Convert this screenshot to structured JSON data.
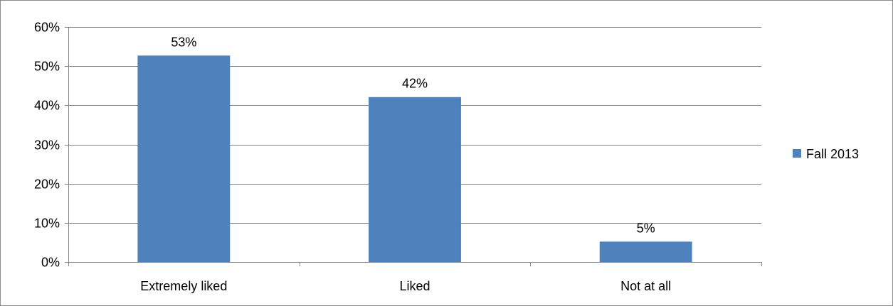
{
  "chart_data": {
    "type": "bar",
    "title": "",
    "xlabel": "",
    "ylabel": "",
    "categories": [
      "Extremely liked",
      "Liked",
      "Not at all"
    ],
    "series": [
      {
        "name": "Fall 2013",
        "values": [
          0.527,
          0.421,
          0.052
        ],
        "data_labels": [
          "53%",
          "42%",
          "5%"
        ],
        "color": "#4f81bd"
      }
    ],
    "ylim": [
      0,
      0.6
    ],
    "yticks": [
      0,
      0.1,
      0.2,
      0.3,
      0.4,
      0.5,
      0.6
    ],
    "ytick_labels": [
      "0%",
      "10%",
      "20%",
      "30%",
      "40%",
      "50%",
      "60%"
    ],
    "grid": true,
    "legend": {
      "position": "right",
      "entries": [
        "Fall 2013"
      ]
    }
  },
  "colors": {
    "bar": "#4f81bd",
    "grid": "#868686",
    "axis": "#868686",
    "border": "#8c8c8c"
  }
}
